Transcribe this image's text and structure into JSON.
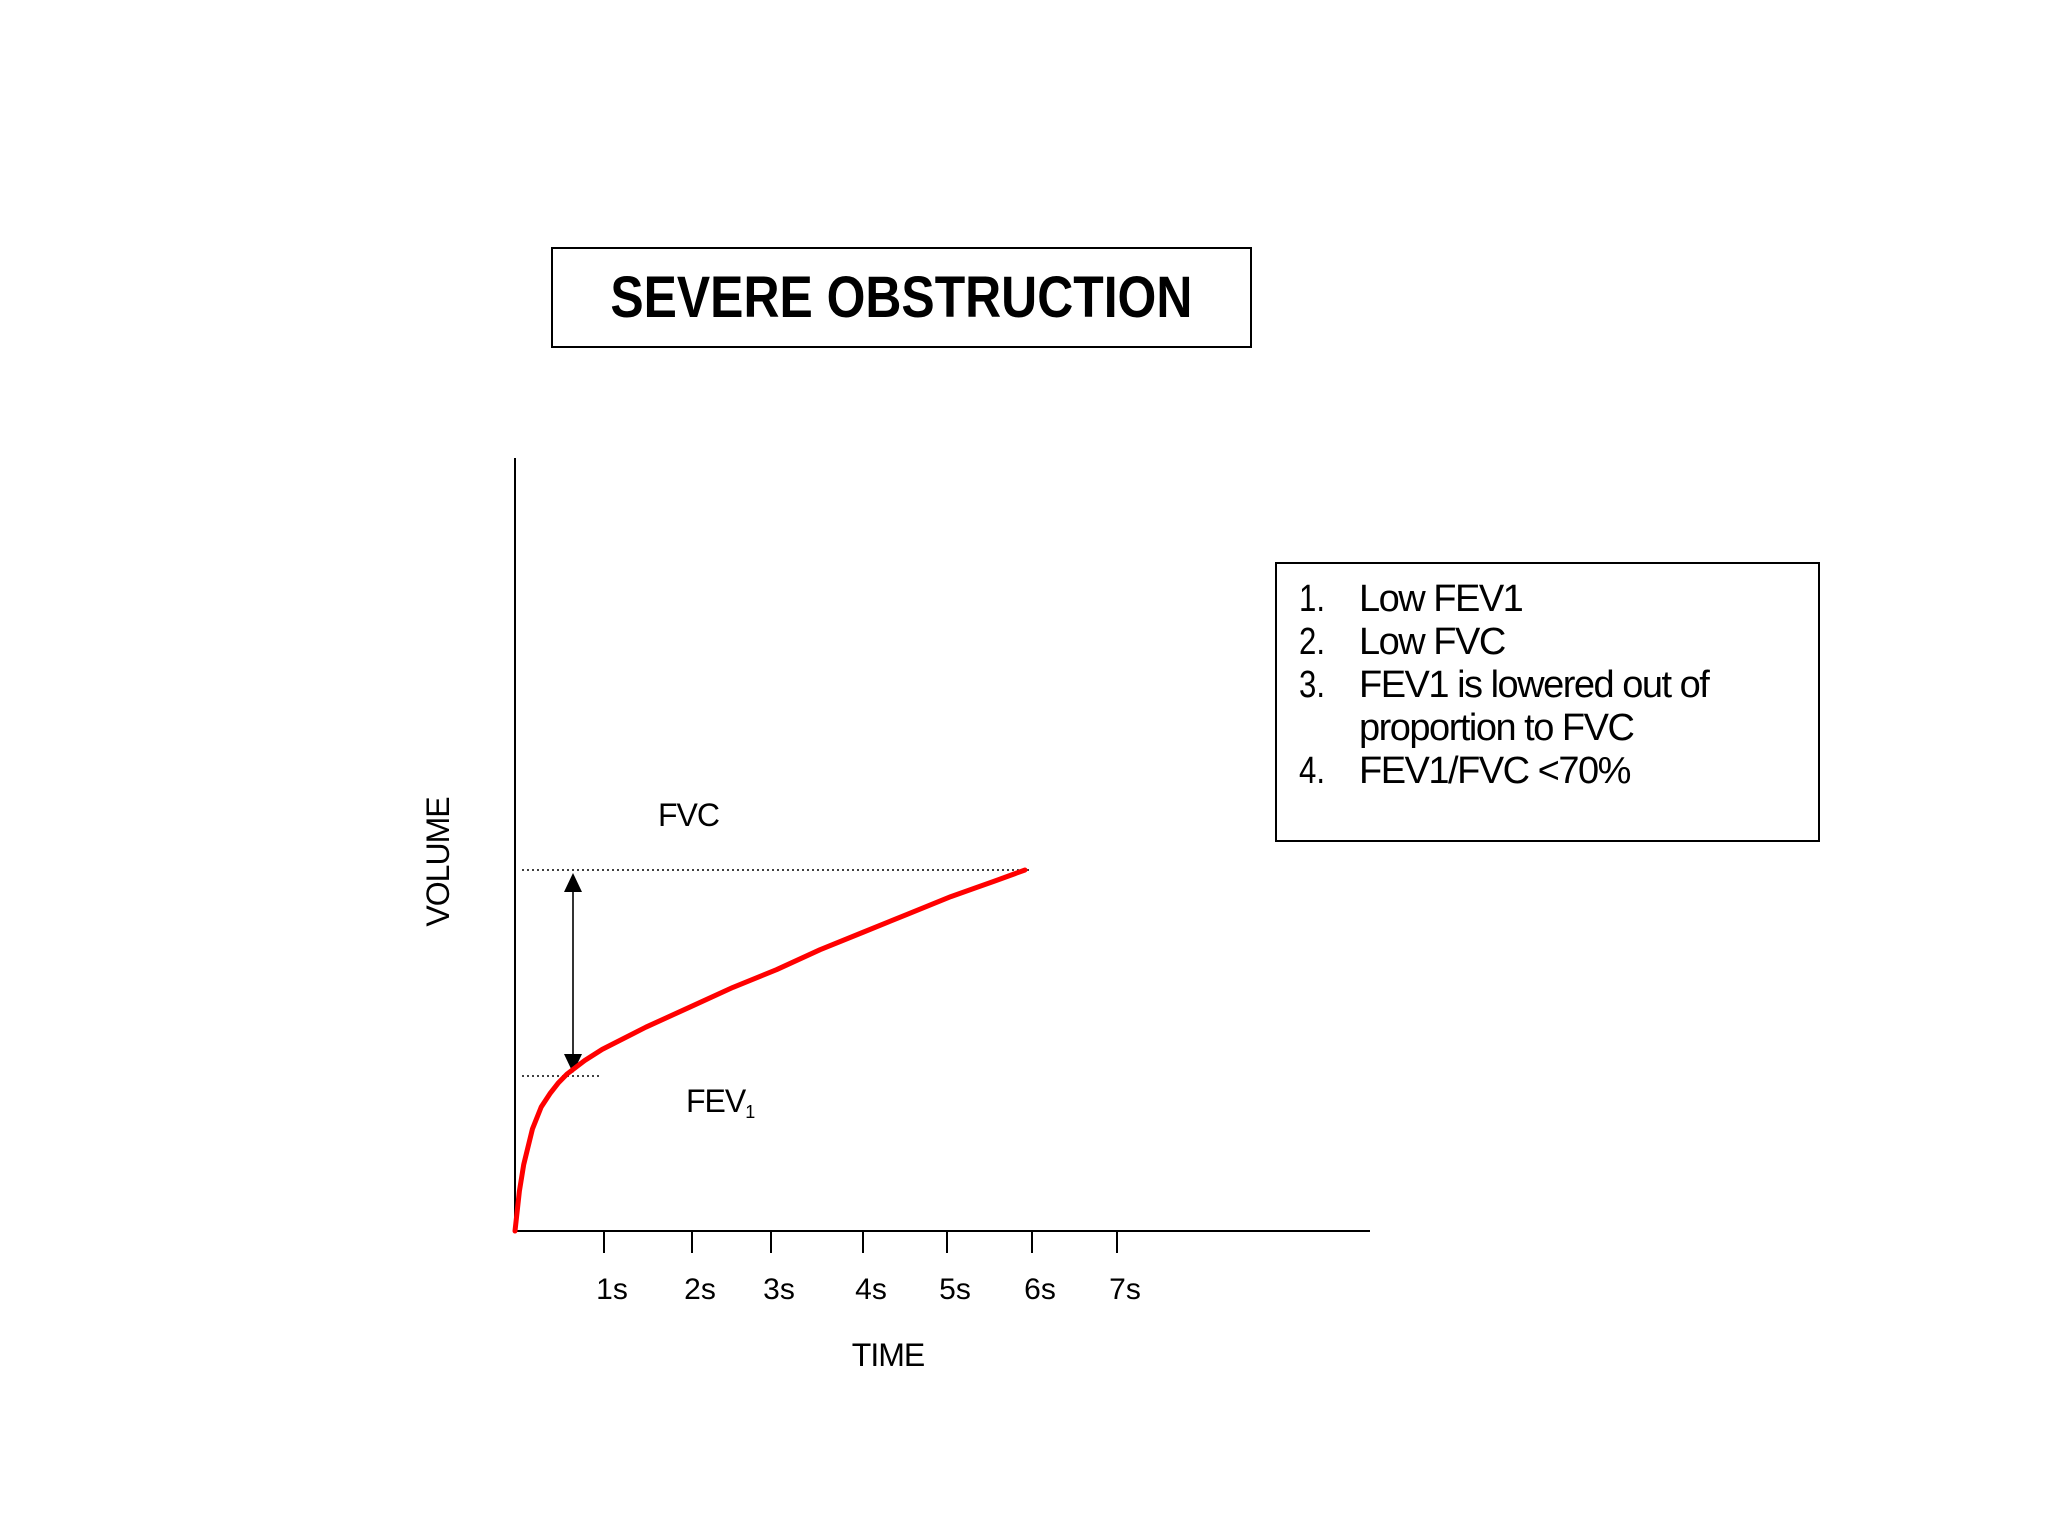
{
  "chart_data": {
    "type": "line",
    "title": "SEVERE OBSTRUCTION",
    "xlabel": "TIME",
    "ylabel": "VOLUME",
    "x_ticks": [
      "1s",
      "2s",
      "3s",
      "4s",
      "5s",
      "6s",
      "7s"
    ],
    "xlim": [
      0,
      9.8
    ],
    "ylim": [
      0,
      1.0
    ],
    "grid": false,
    "series": [
      {
        "color": "#ff0000",
        "x": [
          0,
          0.05,
          0.1,
          0.2,
          0.3,
          0.4,
          0.5,
          0.6,
          0.8,
          1.0,
          1.5,
          2.0,
          2.5,
          3.0,
          3.5,
          4.0,
          4.5,
          5.0,
          5.5,
          5.85
        ],
        "y": [
          0,
          0.09,
          0.15,
          0.23,
          0.28,
          0.31,
          0.335,
          0.355,
          0.385,
          0.41,
          0.46,
          0.505,
          0.55,
          0.59,
          0.635,
          0.675,
          0.715,
          0.755,
          0.79,
          0.815
        ]
      }
    ],
    "reference_lines": [
      {
        "label": "FVC",
        "y": 0.815,
        "style": "dotted"
      },
      {
        "label": "FEV",
        "label_subscript": "1",
        "y": 0.35,
        "style": "dotted"
      }
    ],
    "arrow": {
      "x": 0.67,
      "from_y": 0.35,
      "to_y": 0.815,
      "style": "double-headed"
    }
  },
  "criteria": [
    {
      "num": "1.",
      "text": "Low FEV1"
    },
    {
      "num": "2.",
      "text": "Low FVC"
    },
    {
      "num": "3.",
      "text": "FEV1 is lowered out of proportion to FVC"
    },
    {
      "num": "4.",
      "text": "FEV1/FVC <70%"
    }
  ]
}
